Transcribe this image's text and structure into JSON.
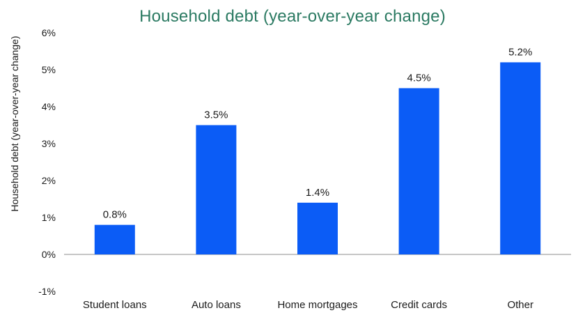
{
  "chart_data": {
    "type": "bar",
    "title": "Household debt (year-over-year change)",
    "xlabel": "",
    "ylabel": "Household debt (year-over-year change)",
    "categories": [
      "Student loans",
      "Auto loans",
      "Home mortgages",
      "Credit cards",
      "Other"
    ],
    "values": [
      0.8,
      3.5,
      1.4,
      4.5,
      5.2
    ],
    "data_labels": [
      "0.8%",
      "3.5%",
      "1.4%",
      "4.5%",
      "5.2%"
    ],
    "ylim": [
      -1,
      6
    ],
    "yticks": [
      -1,
      0,
      1,
      2,
      3,
      4,
      5,
      6
    ],
    "ytick_labels": [
      "-1%",
      "0%",
      "1%",
      "2%",
      "3%",
      "4%",
      "5%",
      "6%"
    ],
    "grid": false,
    "legend": "none",
    "colors": {
      "bar": "#0b5cf6",
      "title": "#2b7a62",
      "axis": "#8c8c8c"
    }
  }
}
